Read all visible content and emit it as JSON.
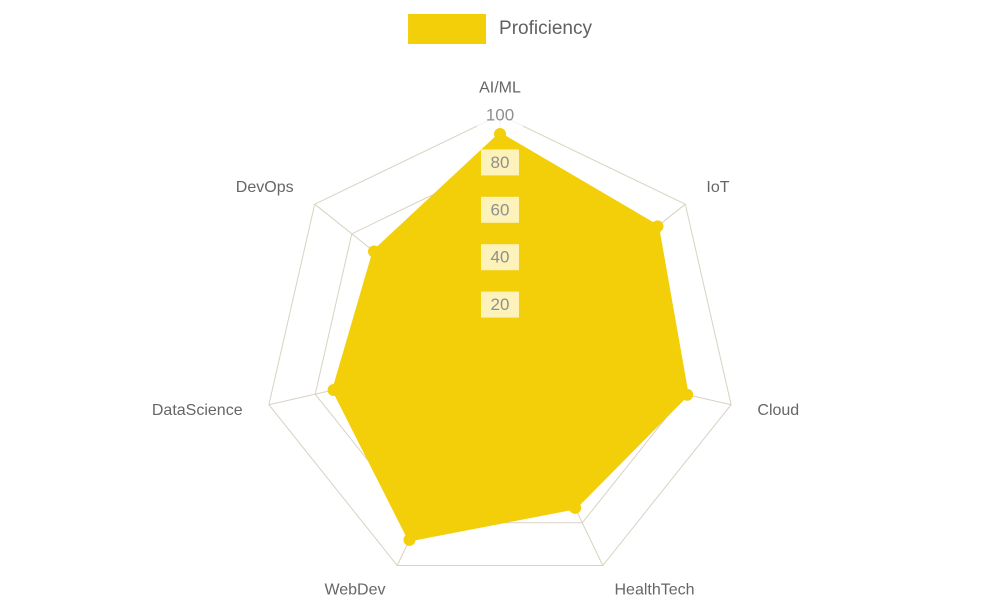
{
  "legend": {
    "label": "Proficiency"
  },
  "chart_data": {
    "type": "radar",
    "title": "",
    "categories": [
      "AI/ML",
      "IoT",
      "Cloud",
      "HealthTech",
      "WebDev",
      "DataScience",
      "DevOps"
    ],
    "series": [
      {
        "name": "Proficiency",
        "values": [
          92,
          85,
          81,
          73,
          88,
          72,
          68
        ],
        "color": "#F3CF0A"
      }
    ],
    "max": 100,
    "tick_interval": 20,
    "ticks": [
      20,
      40,
      60,
      80,
      100
    ],
    "grid": "on",
    "grid_shape": "polygon",
    "grid_color": "#d9d2c2",
    "tick_label_color": "#8f8f8f",
    "axis_label_color": "#666666",
    "legend_position": "top-center",
    "background_color": "#ffffff"
  }
}
